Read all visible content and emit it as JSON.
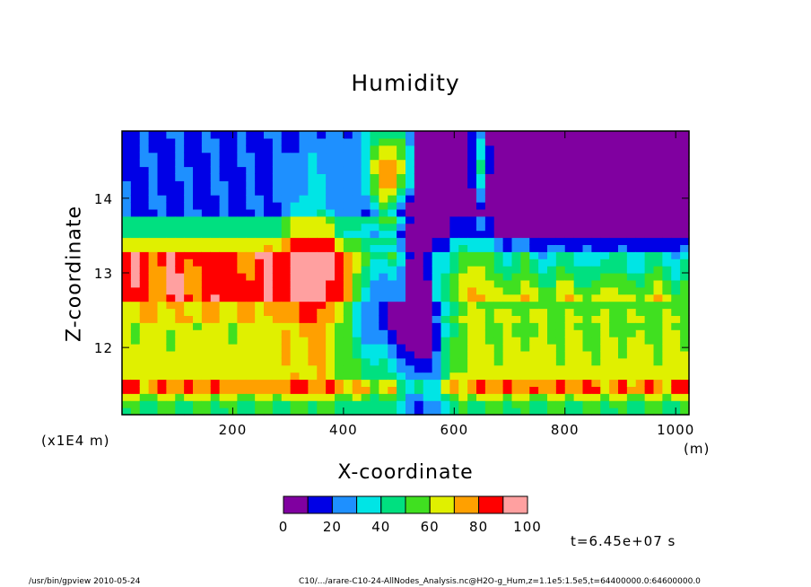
{
  "chart_data": {
    "type": "heatmap",
    "title": "Humidity",
    "xlabel": "X-coordinate",
    "ylabel": "Z-coordinate",
    "x_unit": "(m)",
    "y_unit": "(x1E4 m)",
    "xlim": [
      0,
      1024
    ],
    "ylim": [
      11.1,
      14.9
    ],
    "x_ticks": [
      200,
      400,
      600,
      800,
      1000
    ],
    "x_tick_labels": [
      "200",
      "400",
      "600",
      "800",
      "1000"
    ],
    "y_ticks": [
      12,
      13,
      14
    ],
    "y_tick_labels": [
      "12",
      "13",
      "14"
    ],
    "colorbar": {
      "levels": [
        0,
        10,
        20,
        30,
        40,
        50,
        60,
        70,
        80,
        90,
        100
      ],
      "labels": [
        "0",
        "20",
        "40",
        "60",
        "80",
        "100"
      ],
      "label_values": [
        0,
        20,
        40,
        60,
        80,
        100
      ],
      "colors": [
        "#8000a0",
        "#0000e6",
        "#1e90ff",
        "#00e5e5",
        "#00e080",
        "#40e020",
        "#e0f000",
        "#ffa000",
        "#ff0000",
        "#ffa0a0"
      ]
    },
    "grid": false
  },
  "annotations": {
    "timestamp": "t=6.45e+07 s",
    "footer_left": "/usr/bin/gpview  2010-05-24",
    "footer_right": "C10/.../arare-C10-24-AllNodes_Analysis.nc@H2O-g_Hum,z=1.1e5:1.5e5,t=64400000.0:64600000.0"
  }
}
